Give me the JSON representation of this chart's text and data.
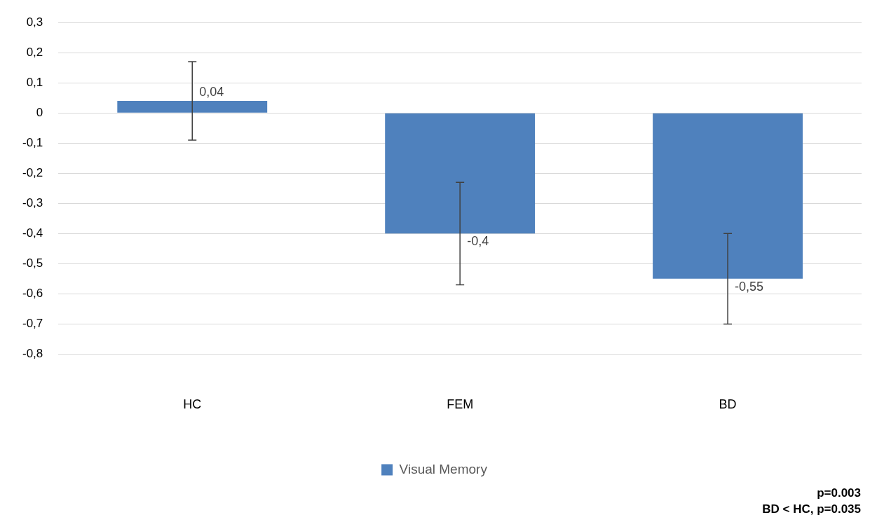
{
  "chart_data": {
    "type": "bar",
    "categories": [
      "HC",
      "FEM",
      "BD"
    ],
    "series": [
      {
        "name": "Visual Memory",
        "color": "#4f81bd",
        "values": [
          0.04,
          -0.4,
          -0.55
        ],
        "errors": [
          0.13,
          0.17,
          0.15
        ],
        "value_labels": [
          "0,04",
          "-0,4",
          "-0,55"
        ]
      }
    ],
    "ylim": [
      -0.8,
      0.3
    ],
    "yticks": [
      {
        "value": 0.3,
        "label": "0,3"
      },
      {
        "value": 0.2,
        "label": "0,2"
      },
      {
        "value": 0.1,
        "label": "0,1"
      },
      {
        "value": 0,
        "label": "0"
      },
      {
        "value": -0.1,
        "label": "-0,1"
      },
      {
        "value": -0.2,
        "label": "-0,2"
      },
      {
        "value": -0.3,
        "label": "-0,3"
      },
      {
        "value": -0.4,
        "label": "-0,4"
      },
      {
        "value": -0.5,
        "label": "-0,5"
      },
      {
        "value": -0.6,
        "label": "-0,6"
      },
      {
        "value": -0.7,
        "label": "-0,7"
      },
      {
        "value": -0.8,
        "label": "-0,8"
      }
    ],
    "grid": "y",
    "legend": "bottom",
    "annotations": [
      "p=0.003",
      "BD < HC, p=0.035"
    ]
  }
}
